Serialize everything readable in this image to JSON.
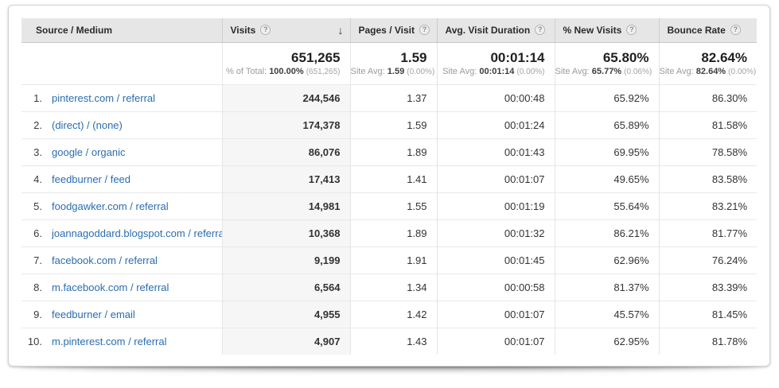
{
  "colors": {
    "link_blue": "#2a6db0",
    "header_bg": "#e6e6e6",
    "sorted_col_bg": "#f6f6f6"
  },
  "icons": {
    "help": "?",
    "sort_desc": "↓"
  },
  "table": {
    "columns": [
      {
        "label": "Source / Medium"
      },
      {
        "label": "Visits"
      },
      {
        "label": "Pages / Visit"
      },
      {
        "label": "Avg. Visit Duration"
      },
      {
        "label": "% New Visits"
      },
      {
        "label": "Bounce Rate"
      }
    ],
    "summary": {
      "visits": {
        "value": "651,265",
        "label": "% of Total:",
        "avg": "100.00%",
        "paren": "(651,265)"
      },
      "pages": {
        "value": "1.59",
        "label": "Site Avg:",
        "avg": "1.59",
        "paren": "(0.00%)"
      },
      "duration": {
        "value": "00:01:14",
        "label": "Site Avg:",
        "avg": "00:01:14",
        "paren": "(0.00%)"
      },
      "new_visits": {
        "value": "65.80%",
        "label": "Site Avg:",
        "avg": "65.77%",
        "paren": "(0.06%)"
      },
      "bounce": {
        "value": "82.64%",
        "label": "Site Avg:",
        "avg": "82.64%",
        "paren": "(0.00%)"
      }
    },
    "rows": [
      {
        "rank": "1.",
        "source": "pinterest.com / referral",
        "visits": "244,546",
        "pages": "1.37",
        "duration": "00:00:48",
        "new_visits": "65.92%",
        "bounce": "86.30%"
      },
      {
        "rank": "2.",
        "source": "(direct) / (none)",
        "visits": "174,378",
        "pages": "1.59",
        "duration": "00:01:24",
        "new_visits": "65.89%",
        "bounce": "81.58%"
      },
      {
        "rank": "3.",
        "source": "google / organic",
        "visits": "86,076",
        "pages": "1.89",
        "duration": "00:01:43",
        "new_visits": "69.95%",
        "bounce": "78.58%"
      },
      {
        "rank": "4.",
        "source": "feedburner / feed",
        "visits": "17,413",
        "pages": "1.41",
        "duration": "00:01:07",
        "new_visits": "49.65%",
        "bounce": "83.58%"
      },
      {
        "rank": "5.",
        "source": "foodgawker.com / referral",
        "visits": "14,981",
        "pages": "1.55",
        "duration": "00:01:19",
        "new_visits": "55.64%",
        "bounce": "83.21%"
      },
      {
        "rank": "6.",
        "source": "joannagoddard.blogspot.com / referral",
        "visits": "10,368",
        "pages": "1.89",
        "duration": "00:01:32",
        "new_visits": "86.21%",
        "bounce": "81.77%"
      },
      {
        "rank": "7.",
        "source": "facebook.com / referral",
        "visits": "9,199",
        "pages": "1.91",
        "duration": "00:01:45",
        "new_visits": "62.96%",
        "bounce": "76.24%"
      },
      {
        "rank": "8.",
        "source": "m.facebook.com / referral",
        "visits": "6,564",
        "pages": "1.34",
        "duration": "00:00:58",
        "new_visits": "81.37%",
        "bounce": "83.39%"
      },
      {
        "rank": "9.",
        "source": "feedburner / email",
        "visits": "4,955",
        "pages": "1.42",
        "duration": "00:01:07",
        "new_visits": "45.57%",
        "bounce": "81.45%"
      },
      {
        "rank": "10.",
        "source": "m.pinterest.com / referral",
        "visits": "4,907",
        "pages": "1.43",
        "duration": "00:01:07",
        "new_visits": "62.95%",
        "bounce": "81.78%"
      }
    ]
  }
}
